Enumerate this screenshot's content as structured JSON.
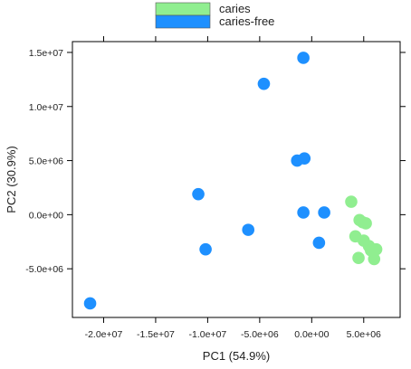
{
  "chart_data": {
    "type": "scatter",
    "title": "",
    "xlabel": "PC1 (54.9%)",
    "ylabel": "PC2  (30.9%)",
    "xlim": [
      -23000000,
      8500000
    ],
    "ylim": [
      -9500000,
      16000000
    ],
    "x_ticks": [
      -20000000,
      -15000000,
      -10000000,
      -5000000,
      0,
      5000000
    ],
    "x_tick_labels": [
      "-2.0e+07",
      "-1.5e+07",
      "-1.0e+07",
      "-5.0e+06",
      "0.0e+00",
      "5.0e+06"
    ],
    "y_ticks": [
      -5000000,
      0,
      5000000,
      10000000,
      15000000
    ],
    "y_tick_labels": [
      "-5.0e+06",
      "0.0e+00",
      "5.0e+06",
      "1.0e+07",
      "1.5e+07"
    ],
    "legend_position": "top-center, outside plot",
    "grid": false,
    "series": [
      {
        "name": "caries",
        "color": "#90EE90",
        "points": [
          [
            3800000,
            1200000
          ],
          [
            4600000,
            -500000
          ],
          [
            4900000,
            -700000
          ],
          [
            5200000,
            -800000
          ],
          [
            4200000,
            -2000000
          ],
          [
            5000000,
            -2400000
          ],
          [
            5500000,
            -2900000
          ],
          [
            5700000,
            -3300000
          ],
          [
            6200000,
            -3200000
          ],
          [
            4500000,
            -4000000
          ],
          [
            6000000,
            -4100000
          ]
        ]
      },
      {
        "name": "caries-free",
        "color": "#1E90FF",
        "points": [
          [
            -800000,
            14500000
          ],
          [
            -4600000,
            12100000
          ],
          [
            -1400000,
            5000000
          ],
          [
            -700000,
            5200000
          ],
          [
            -10900000,
            1900000
          ],
          [
            -800000,
            200000
          ],
          [
            1200000,
            200000
          ],
          [
            -6100000,
            -1400000
          ],
          [
            700000,
            -2600000
          ],
          [
            -10200000,
            -3200000
          ],
          [
            -21300000,
            -8200000
          ]
        ]
      }
    ]
  }
}
